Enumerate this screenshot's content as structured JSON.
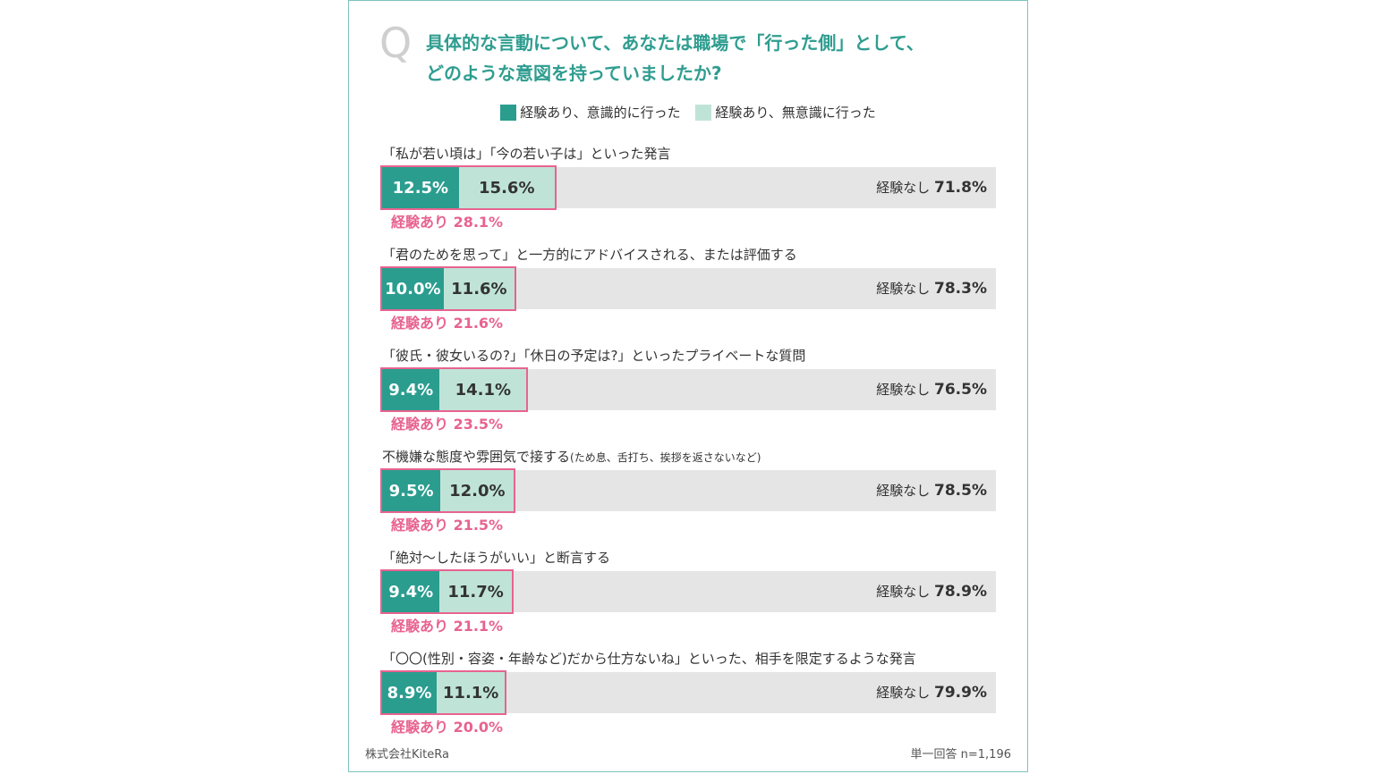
{
  "question": {
    "mark": "Q",
    "line1": "具体的な言動について、あなたは職場で「行った側」として、",
    "line2": "どのような意図を持っていましたか?"
  },
  "legend": {
    "conscious": "経験あり、意識的に行った",
    "unconscious": "経験あり、無意識に行った"
  },
  "colors": {
    "conscious": "#2a9d8f",
    "unconscious": "#bfe4d7",
    "none": "#e5e5e5",
    "highlight": "#e8638f",
    "title": "#2f9d90"
  },
  "chart_data": {
    "type": "bar",
    "orientation": "horizontal-stacked",
    "title": "具体的な言動について、あなたは職場で「行った側」として、どのような意図を持っていましたか?",
    "xlim": [
      0,
      100
    ],
    "unit": "%",
    "series_names": [
      "経験あり、意識的に行った",
      "経験あり、無意識に行った",
      "経験なし"
    ],
    "none_prefix": "経験なし",
    "total_prefix": "経験あり",
    "categories": [
      {
        "label": "「私が若い頃は」「今の若い子は」といった発言",
        "sub": "",
        "conscious": 12.5,
        "unconscious": 15.6,
        "none": 71.8,
        "total": 28.1
      },
      {
        "label": "「君のためを思って」と一方的にアドバイスされる、または評価する",
        "sub": "",
        "conscious": 10.0,
        "unconscious": 11.6,
        "none": 78.3,
        "total": 21.6
      },
      {
        "label": "「彼氏・彼女いるの?」「休日の予定は?」といったプライベートな質問",
        "sub": "",
        "conscious": 9.4,
        "unconscious": 14.1,
        "none": 76.5,
        "total": 23.5
      },
      {
        "label": "不機嫌な態度や雰囲気で接する",
        "sub": "(ため息、舌打ち、挨拶を返さないなど)",
        "conscious": 9.5,
        "unconscious": 12.0,
        "none": 78.5,
        "total": 21.5
      },
      {
        "label": "「絶対〜したほうがいい」と断言する",
        "sub": "",
        "conscious": 9.4,
        "unconscious": 11.7,
        "none": 78.9,
        "total": 21.1
      },
      {
        "label": "「〇〇(性別・容姿・年齢など)だから仕方ないね」といった、相手を限定するような発言",
        "sub": "",
        "conscious": 8.9,
        "unconscious": 11.1,
        "none": 79.9,
        "total": 20.0
      }
    ]
  },
  "footer": {
    "source": "株式会社KiteRa",
    "note": "単一回答 n=1,196"
  }
}
